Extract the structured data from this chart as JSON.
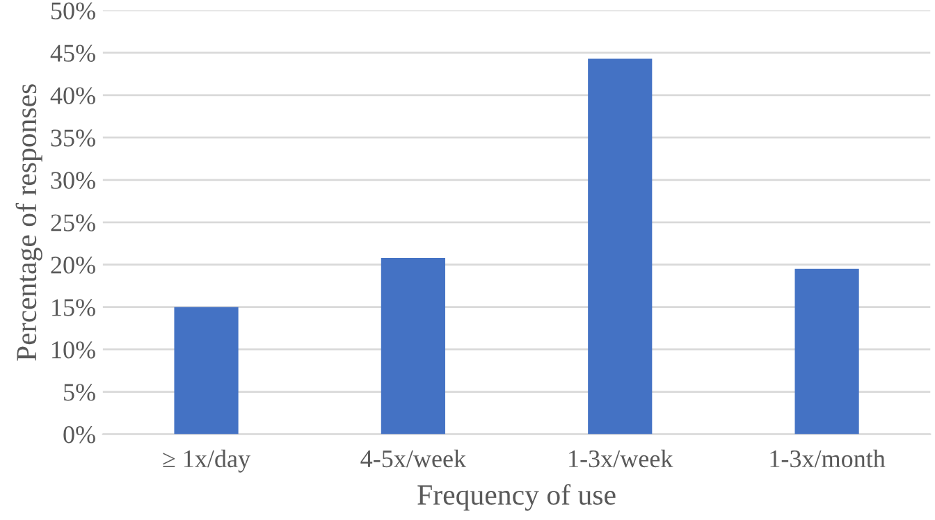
{
  "chart_data": {
    "type": "bar",
    "xlabel": "Frequency of use",
    "ylabel": "Percentage of responses",
    "categories": [
      "≥ 1x/day",
      "4-5x/week",
      "1-3x/week",
      "1-3x/month"
    ],
    "values": [
      15,
      20.8,
      44.3,
      19.5
    ],
    "color": "#4472c4",
    "ylim": [
      0,
      50
    ],
    "yticks": [
      {
        "value": 0,
        "label": "0%"
      },
      {
        "value": 5,
        "label": "5%"
      },
      {
        "value": 10,
        "label": "10%"
      },
      {
        "value": 15,
        "label": "15%"
      },
      {
        "value": 20,
        "label": "20%"
      },
      {
        "value": 25,
        "label": "25%"
      },
      {
        "value": 30,
        "label": "30%"
      },
      {
        "value": 35,
        "label": "35%"
      },
      {
        "value": 40,
        "label": "40%"
      },
      {
        "value": 45,
        "label": "45%"
      },
      {
        "value": 50,
        "label": "50%"
      }
    ],
    "grid": "y",
    "legend": false
  }
}
